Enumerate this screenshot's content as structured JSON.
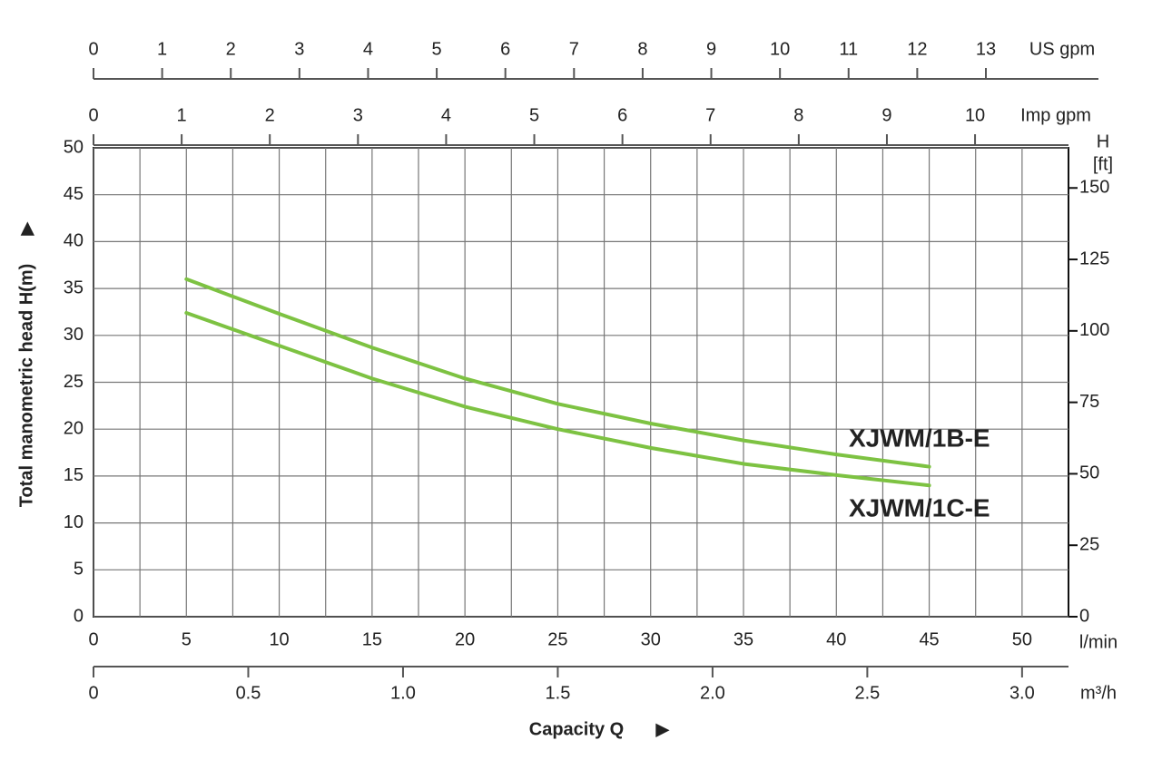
{
  "chart_data": {
    "type": "line",
    "y_title": "Total manometric head H(m)",
    "x_title": "Capacity Q",
    "x_unit": "l/min",
    "y2_title": "H",
    "y2_unit": "[ft]",
    "x": [
      5,
      10,
      15,
      20,
      25,
      30,
      35,
      40,
      45
    ],
    "xlim": [
      0,
      52.5
    ],
    "xticks": [
      0,
      5,
      10,
      15,
      20,
      25,
      30,
      35,
      40,
      45,
      50
    ],
    "x_minor_grid": [
      2.5,
      7.5,
      12.5,
      17.5,
      22.5,
      27.5,
      32.5,
      37.5,
      42.5,
      47.5
    ],
    "ylim": [
      0,
      50
    ],
    "yticks": [
      0,
      5,
      10,
      15,
      20,
      25,
      30,
      35,
      40,
      45,
      50
    ],
    "y2lim": [
      0,
      164.04
    ],
    "y2ticks": [
      0,
      25,
      50,
      75,
      100,
      125,
      150
    ],
    "grid": true,
    "series": [
      {
        "name": "XJWM/1B-E",
        "color": "#7dc242",
        "values": [
          36,
          32.3,
          28.7,
          25.4,
          22.7,
          20.6,
          18.8,
          17.3,
          16.0
        ]
      },
      {
        "name": "XJWM/1C-E",
        "color": "#7dc242",
        "values": [
          32.4,
          28.9,
          25.4,
          22.4,
          20.0,
          18.0,
          16.3,
          15.1,
          14.0
        ]
      }
    ],
    "extra_axes": [
      {
        "unit": "m³/h",
        "lim": [
          0,
          3.15
        ],
        "ticks": [
          0,
          0.5,
          {
            "value": 1,
            "label": "1.0"
          },
          1.5,
          {
            "value": 2,
            "label": "2.0"
          },
          2.5,
          {
            "value": 3,
            "label": "3.0"
          }
        ]
      },
      {
        "unit": "US gpm",
        "lim": [
          0,
          14.64
        ],
        "ticks": [
          0,
          1,
          2,
          3,
          4,
          5,
          6,
          7,
          8,
          9,
          10,
          11,
          12,
          13
        ]
      },
      {
        "unit": "Imp gpm",
        "lim": [
          0,
          11.06
        ],
        "ticks": [
          0,
          1,
          2,
          3,
          4,
          5,
          6,
          7,
          8,
          9,
          10
        ]
      }
    ]
  }
}
